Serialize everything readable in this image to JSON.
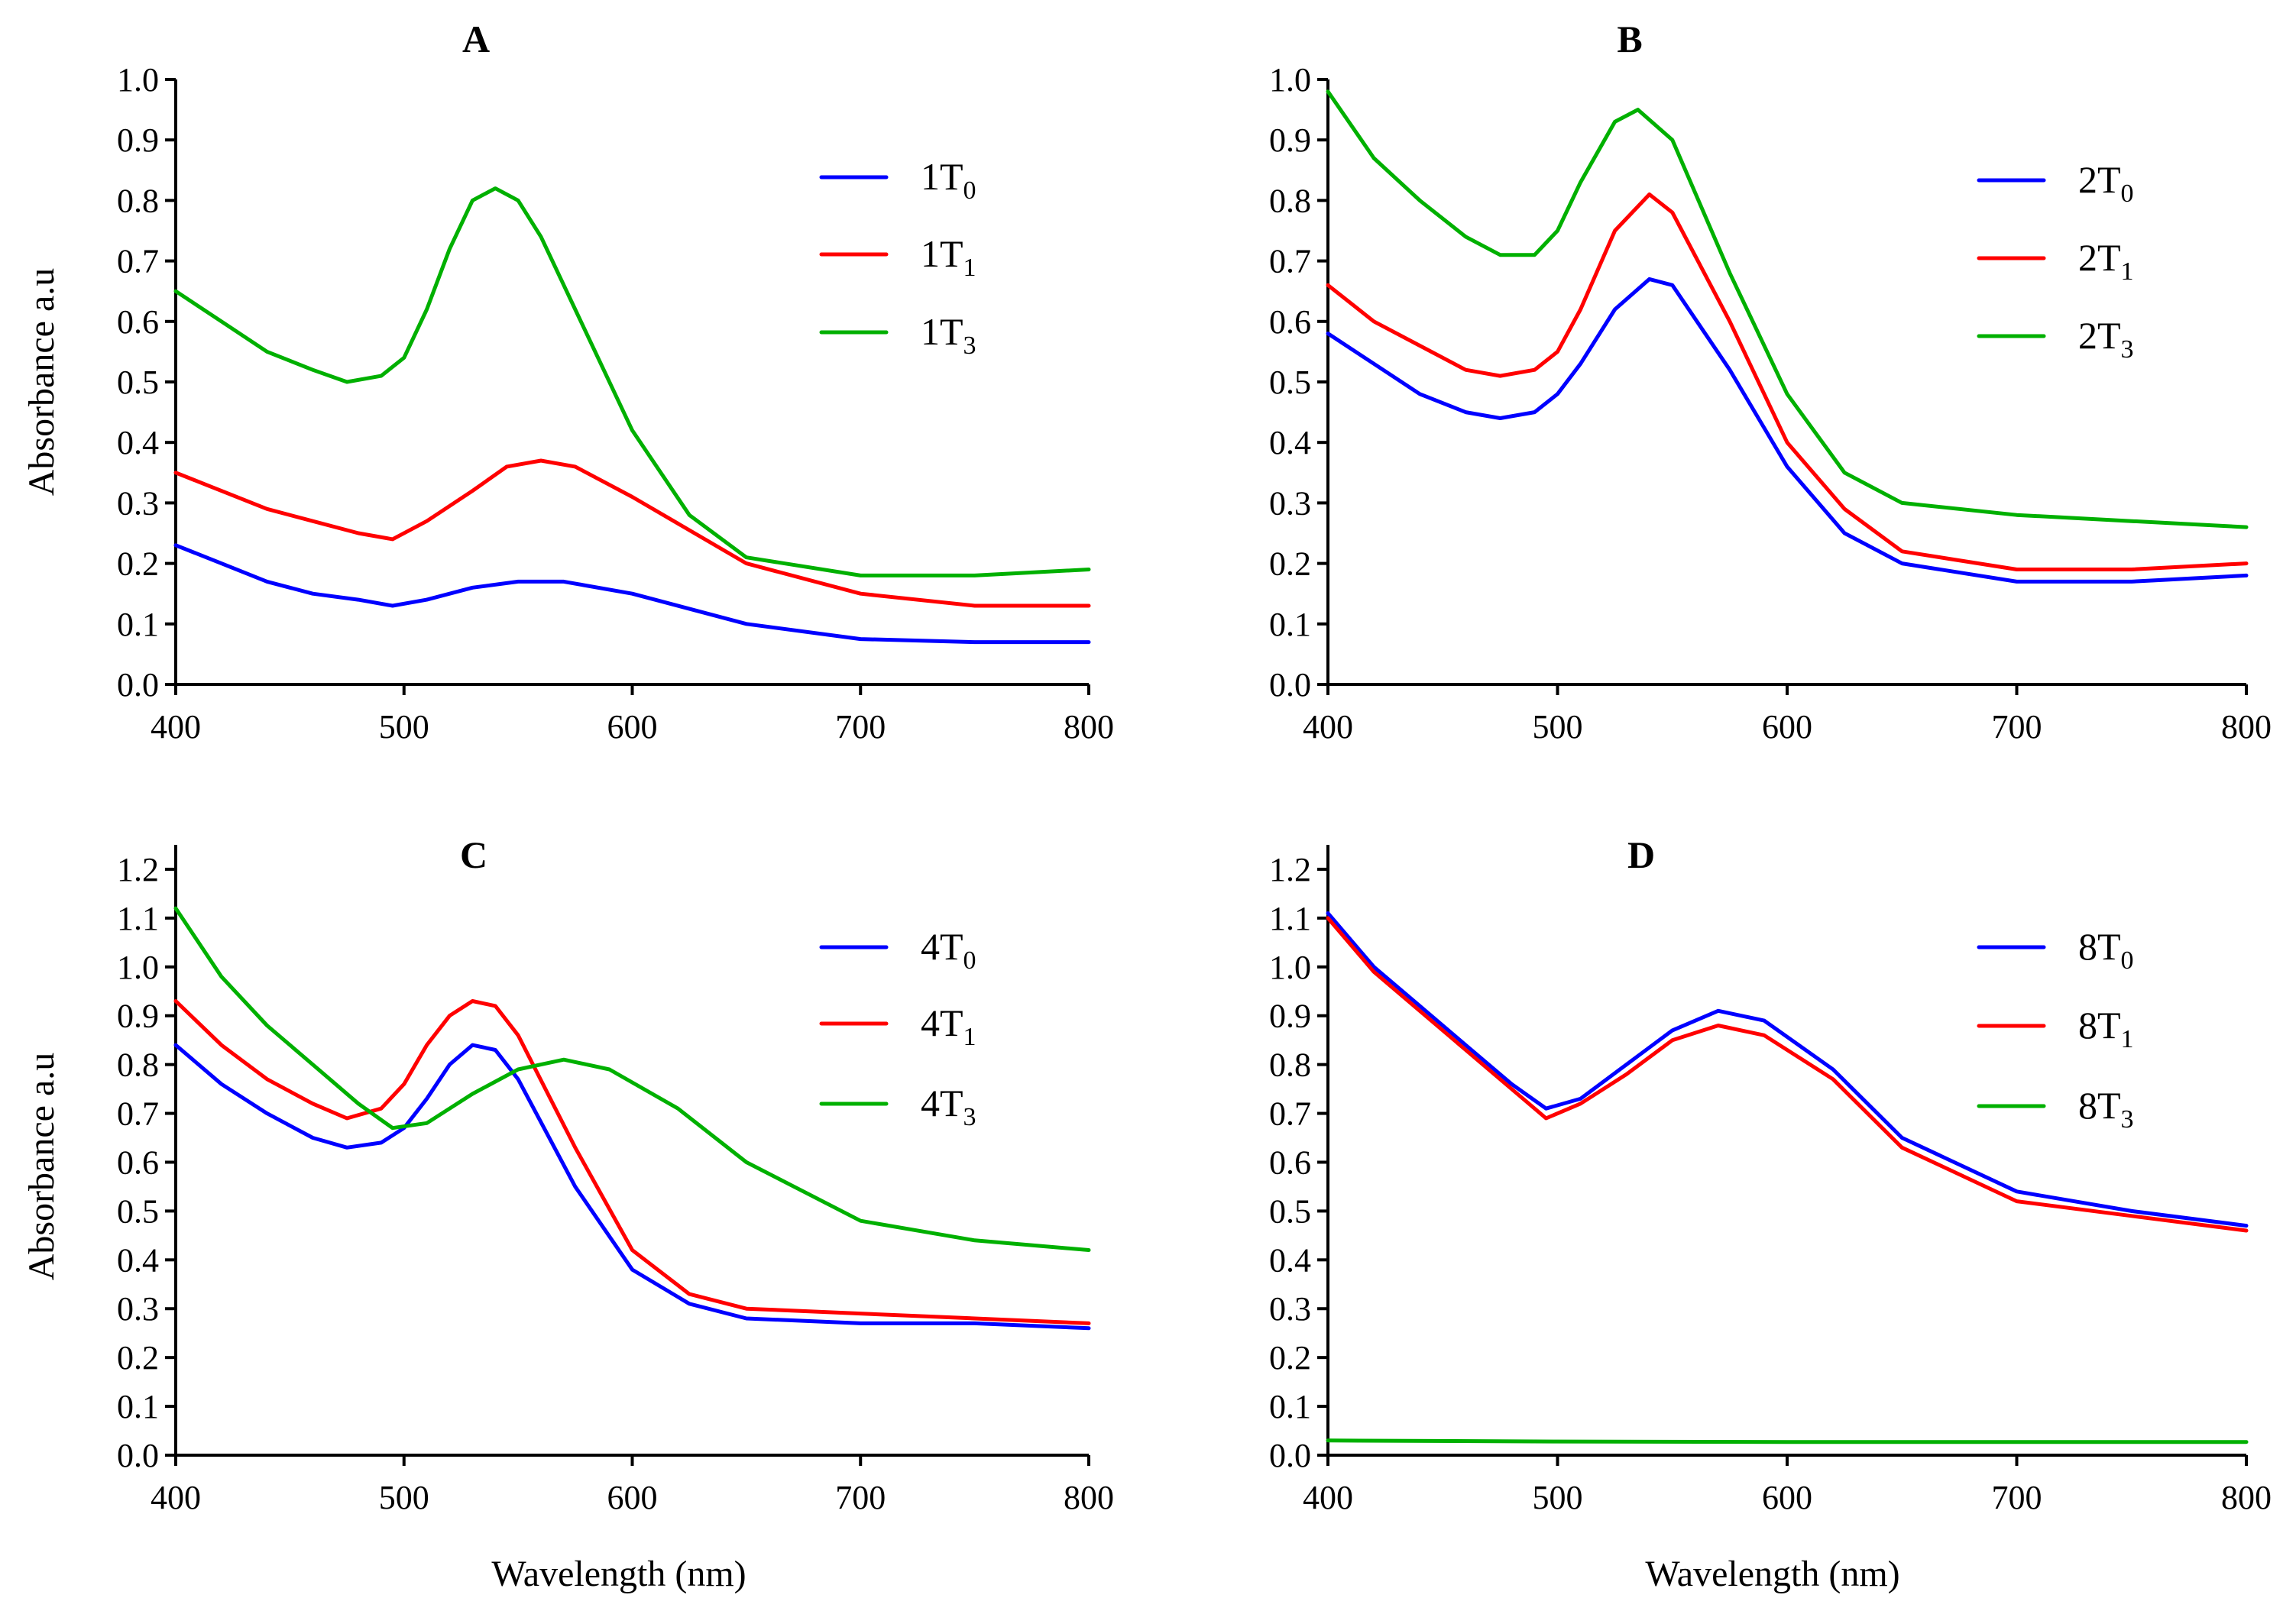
{
  "chart_data": [
    {
      "type": "line",
      "panel": "A",
      "title": "A",
      "xlabel": "",
      "ylabel": "Absorbance a.u",
      "xlim": [
        400,
        800
      ],
      "ylim": [
        0,
        1.0
      ],
      "xticks": [
        "400",
        "500",
        "600",
        "700",
        "800"
      ],
      "yticks": [
        "0.0",
        "0.1",
        "0.2",
        "0.3",
        "0.4",
        "0.5",
        "0.6",
        "0.7",
        "0.8",
        "0.9",
        "1.0"
      ],
      "legend_position": "top-right",
      "series": [
        {
          "name": "1T",
          "sub": "0",
          "color": "#0000ff",
          "x": [
            400,
            420,
            440,
            460,
            480,
            495,
            510,
            530,
            550,
            570,
            600,
            650,
            700,
            750,
            800
          ],
          "y": [
            0.23,
            0.2,
            0.17,
            0.15,
            0.14,
            0.13,
            0.14,
            0.16,
            0.17,
            0.17,
            0.15,
            0.1,
            0.075,
            0.07,
            0.07
          ]
        },
        {
          "name": "1T",
          "sub": "1",
          "color": "#ff0000",
          "x": [
            400,
            420,
            440,
            460,
            480,
            495,
            510,
            530,
            545,
            560,
            575,
            600,
            650,
            700,
            750,
            800
          ],
          "y": [
            0.35,
            0.32,
            0.29,
            0.27,
            0.25,
            0.24,
            0.27,
            0.32,
            0.36,
            0.37,
            0.36,
            0.31,
            0.2,
            0.15,
            0.13,
            0.13
          ]
        },
        {
          "name": "1T",
          "sub": "3",
          "color": "#00b000",
          "x": [
            400,
            420,
            440,
            460,
            475,
            490,
            500,
            510,
            520,
            530,
            540,
            550,
            560,
            575,
            600,
            625,
            650,
            700,
            750,
            800
          ],
          "y": [
            0.65,
            0.6,
            0.55,
            0.52,
            0.5,
            0.51,
            0.54,
            0.62,
            0.72,
            0.8,
            0.82,
            0.8,
            0.74,
            0.62,
            0.42,
            0.28,
            0.21,
            0.18,
            0.18,
            0.19
          ]
        }
      ]
    },
    {
      "type": "line",
      "panel": "B",
      "title": "B",
      "xlabel": "",
      "ylabel": "",
      "xlim": [
        400,
        800
      ],
      "ylim": [
        0,
        1.0
      ],
      "xticks": [
        "400",
        "500",
        "600",
        "700",
        "800"
      ],
      "yticks": [
        "0.0",
        "0.1",
        "0.2",
        "0.3",
        "0.4",
        "0.5",
        "0.6",
        "0.7",
        "0.8",
        "0.9",
        "1.0"
      ],
      "legend_position": "top-right",
      "series": [
        {
          "name": "2T",
          "sub": "0",
          "color": "#0000ff",
          "x": [
            400,
            420,
            440,
            460,
            475,
            490,
            500,
            510,
            525,
            540,
            550,
            575,
            600,
            625,
            650,
            700,
            750,
            800
          ],
          "y": [
            0.58,
            0.53,
            0.48,
            0.45,
            0.44,
            0.45,
            0.48,
            0.53,
            0.62,
            0.67,
            0.66,
            0.52,
            0.36,
            0.25,
            0.2,
            0.17,
            0.17,
            0.18
          ]
        },
        {
          "name": "2T",
          "sub": "1",
          "color": "#ff0000",
          "x": [
            400,
            420,
            440,
            460,
            475,
            490,
            500,
            510,
            525,
            540,
            550,
            575,
            600,
            625,
            650,
            700,
            750,
            800
          ],
          "y": [
            0.66,
            0.6,
            0.56,
            0.52,
            0.51,
            0.52,
            0.55,
            0.62,
            0.75,
            0.81,
            0.78,
            0.6,
            0.4,
            0.29,
            0.22,
            0.19,
            0.19,
            0.2
          ]
        },
        {
          "name": "2T",
          "sub": "3",
          "color": "#00b000",
          "x": [
            400,
            420,
            440,
            460,
            475,
            490,
            500,
            510,
            525,
            535,
            550,
            575,
            600,
            625,
            650,
            700,
            750,
            800
          ],
          "y": [
            0.98,
            0.87,
            0.8,
            0.74,
            0.71,
            0.71,
            0.75,
            0.83,
            0.93,
            0.95,
            0.9,
            0.68,
            0.48,
            0.35,
            0.3,
            0.28,
            0.27,
            0.26
          ]
        }
      ]
    },
    {
      "type": "line",
      "panel": "C",
      "title": "C",
      "xlabel": "Wavelength (nm)",
      "ylabel": "Absorbance a.u",
      "xlim": [
        400,
        800
      ],
      "ylim": [
        0,
        1.25
      ],
      "xticks": [
        "400",
        "500",
        "600",
        "700",
        "800"
      ],
      "yticks": [
        "0.0",
        "0.1",
        "0.2",
        "0.3",
        "0.4",
        "0.5",
        "0.6",
        "0.7",
        "0.8",
        "0.9",
        "1.0",
        "1.1",
        "1.2"
      ],
      "legend_position": "top-right",
      "series": [
        {
          "name": "4T",
          "sub": "0",
          "color": "#0000ff",
          "x": [
            400,
            420,
            440,
            460,
            475,
            490,
            500,
            510,
            520,
            530,
            540,
            550,
            575,
            600,
            625,
            650,
            700,
            750,
            800
          ],
          "y": [
            0.84,
            0.76,
            0.7,
            0.65,
            0.63,
            0.64,
            0.67,
            0.73,
            0.8,
            0.84,
            0.83,
            0.77,
            0.55,
            0.38,
            0.31,
            0.28,
            0.27,
            0.27,
            0.26
          ]
        },
        {
          "name": "4T",
          "sub": "1",
          "color": "#ff0000",
          "x": [
            400,
            420,
            440,
            460,
            475,
            490,
            500,
            510,
            520,
            530,
            540,
            550,
            575,
            600,
            625,
            650,
            700,
            750,
            800
          ],
          "y": [
            0.93,
            0.84,
            0.77,
            0.72,
            0.69,
            0.71,
            0.76,
            0.84,
            0.9,
            0.93,
            0.92,
            0.86,
            0.63,
            0.42,
            0.33,
            0.3,
            0.29,
            0.28,
            0.27
          ]
        },
        {
          "name": "4T",
          "sub": "3",
          "color": "#00b000",
          "x": [
            400,
            420,
            440,
            460,
            480,
            495,
            510,
            530,
            550,
            570,
            590,
            620,
            650,
            700,
            750,
            800
          ],
          "y": [
            1.12,
            0.98,
            0.88,
            0.8,
            0.72,
            0.67,
            0.68,
            0.74,
            0.79,
            0.81,
            0.79,
            0.71,
            0.6,
            0.48,
            0.44,
            0.42
          ]
        }
      ]
    },
    {
      "type": "line",
      "panel": "D",
      "title": "D",
      "xlabel": "Wavelength (nm)",
      "ylabel": "",
      "xlim": [
        400,
        800
      ],
      "ylim": [
        0,
        1.25
      ],
      "xticks": [
        "400",
        "500",
        "600",
        "700",
        "800"
      ],
      "yticks": [
        "0.0",
        "0.1",
        "0.2",
        "0.3",
        "0.4",
        "0.5",
        "0.6",
        "0.7",
        "0.8",
        "0.9",
        "1.0",
        "1.1",
        "1.2"
      ],
      "legend_position": "top-right",
      "series": [
        {
          "name": "8T",
          "sub": "0",
          "color": "#0000ff",
          "x": [
            400,
            420,
            440,
            460,
            480,
            495,
            510,
            530,
            550,
            570,
            590,
            620,
            650,
            700,
            750,
            800
          ],
          "y": [
            1.11,
            1.0,
            0.92,
            0.84,
            0.76,
            0.71,
            0.73,
            0.8,
            0.87,
            0.91,
            0.89,
            0.79,
            0.65,
            0.54,
            0.5,
            0.47
          ]
        },
        {
          "name": "8T",
          "sub": "1",
          "color": "#ff0000",
          "x": [
            400,
            420,
            440,
            460,
            480,
            495,
            510,
            530,
            550,
            570,
            590,
            620,
            650,
            700,
            750,
            800
          ],
          "y": [
            1.1,
            0.99,
            0.91,
            0.83,
            0.75,
            0.69,
            0.72,
            0.78,
            0.85,
            0.88,
            0.86,
            0.77,
            0.63,
            0.52,
            0.49,
            0.46
          ]
        },
        {
          "name": "8T",
          "sub": "3",
          "color": "#00b000",
          "x": [
            400,
            500,
            600,
            700,
            800
          ],
          "y": [
            0.03,
            0.028,
            0.027,
            0.027,
            0.027
          ]
        }
      ]
    }
  ]
}
